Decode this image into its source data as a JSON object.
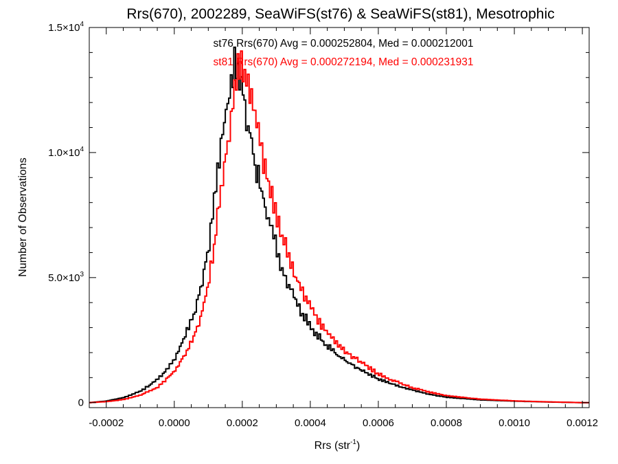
{
  "chart_data": {
    "type": "histogram-step",
    "title": "Rrs(670), 2002289, SeaWiFS(st76) & SeaWiFS(st81), Mesotrophic",
    "xlabel": "Rrs (str",
    "xlabel_sup": "-1",
    "xlabel_close": ")",
    "ylabel": "Number of Observations",
    "xlim": [
      -0.00025,
      0.00122
    ],
    "ylim": [
      -200,
      15000
    ],
    "x_ticks": [
      -0.0002,
      0.0,
      0.0002,
      0.0004,
      0.0006,
      0.0008,
      0.001,
      0.0012
    ],
    "x_tick_labels": [
      "-0.0002",
      "0.0000",
      "0.0002",
      "0.0004",
      "0.0006",
      "0.0008",
      "0.0010",
      "0.0012"
    ],
    "y_ticks": [
      {
        "value": 0,
        "mantissa": "0",
        "exponent": ""
      },
      {
        "value": 5000,
        "mantissa": "5.0×10",
        "exponent": "3"
      },
      {
        "value": 10000,
        "mantissa": "1.0×10",
        "exponent": "4"
      },
      {
        "value": 15000,
        "mantissa": "1.5×10",
        "exponent": "4"
      }
    ],
    "grid": false,
    "annotations": [
      {
        "text": "st76 Rrs(670) Avg = 0.000252804, Med = 0.000212001",
        "color": "#000000"
      },
      {
        "text": "st81 Rrs(670) Avg = 0.000272194, Med = 0.000231931",
        "color": "#ff0000"
      }
    ],
    "series": [
      {
        "color": "#000000",
        "x": [
          -0.00025,
          -0.0002,
          -0.00015,
          -0.0001,
          -5e-05,
          0.0,
          3e-05,
          6e-05,
          8e-05,
          0.0001,
          0.00012,
          0.00014,
          0.00016,
          0.00017,
          0.00018,
          0.00019,
          0.0002,
          0.00022,
          0.00024,
          0.00026,
          0.00028,
          0.0003,
          0.00032,
          0.00034,
          0.00036,
          0.00038,
          0.0004,
          0.00042,
          0.00045,
          0.00048,
          0.0005,
          0.00055,
          0.0006,
          0.00065,
          0.0007,
          0.00075,
          0.0008,
          0.0009,
          0.001,
          0.0011,
          0.0012
        ],
        "values": [
          0,
          60,
          200,
          450,
          900,
          1700,
          2600,
          3600,
          4700,
          6100,
          8200,
          10500,
          12300,
          13100,
          13600,
          13100,
          12500,
          10900,
          9400,
          8300,
          7200,
          6200,
          5200,
          4600,
          4000,
          3500,
          3100,
          2700,
          2300,
          1900,
          1700,
          1300,
          950,
          700,
          500,
          330,
          220,
          110,
          60,
          25,
          0
        ]
      },
      {
        "color": "#ff0000",
        "x": [
          -0.00025,
          -0.0002,
          -0.00015,
          -0.0001,
          -5e-05,
          0.0,
          3e-05,
          6e-05,
          8e-05,
          0.0001,
          0.00012,
          0.00014,
          0.00016,
          0.00017,
          0.00018,
          0.00019,
          0.0002,
          0.00022,
          0.00024,
          0.00026,
          0.00028,
          0.0003,
          0.00032,
          0.00034,
          0.00036,
          0.00038,
          0.0004,
          0.00042,
          0.00045,
          0.00048,
          0.0005,
          0.00055,
          0.0006,
          0.00065,
          0.0007,
          0.00075,
          0.0008,
          0.0009,
          0.001,
          0.0011,
          0.0012
        ],
        "values": [
          0,
          40,
          120,
          300,
          600,
          1250,
          1900,
          2700,
          3600,
          4700,
          6500,
          8700,
          10600,
          11800,
          13000,
          13600,
          13200,
          12500,
          11200,
          9800,
          8600,
          7600,
          6600,
          5700,
          4900,
          4300,
          3800,
          3300,
          2800,
          2400,
          2100,
          1600,
          1150,
          850,
          600,
          420,
          280,
          140,
          70,
          30,
          0
        ]
      }
    ]
  }
}
